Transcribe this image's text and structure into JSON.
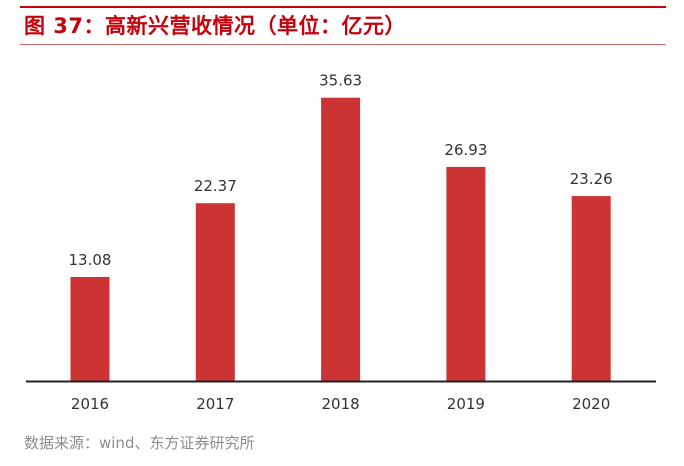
{
  "title": "图 37：高新兴营收情况（单位：亿元）",
  "source": "数据来源：wind、东方证券研究所",
  "colors": {
    "accent": "#c7000b",
    "bar": "#cc3333",
    "axis": "#222222"
  },
  "chart_data": {
    "type": "bar",
    "title": "图 37：高新兴营收情况（单位：亿元）",
    "categories": [
      "2016",
      "2017",
      "2018",
      "2019",
      "2020"
    ],
    "values": [
      13.08,
      22.37,
      35.63,
      26.93,
      23.26
    ],
    "value_labels": [
      "13.08",
      "22.37",
      "35.63",
      "26.93",
      "23.26"
    ],
    "xlabel": "",
    "ylabel": "",
    "ylim": [
      0,
      40
    ],
    "grid": false,
    "legend": "none"
  }
}
